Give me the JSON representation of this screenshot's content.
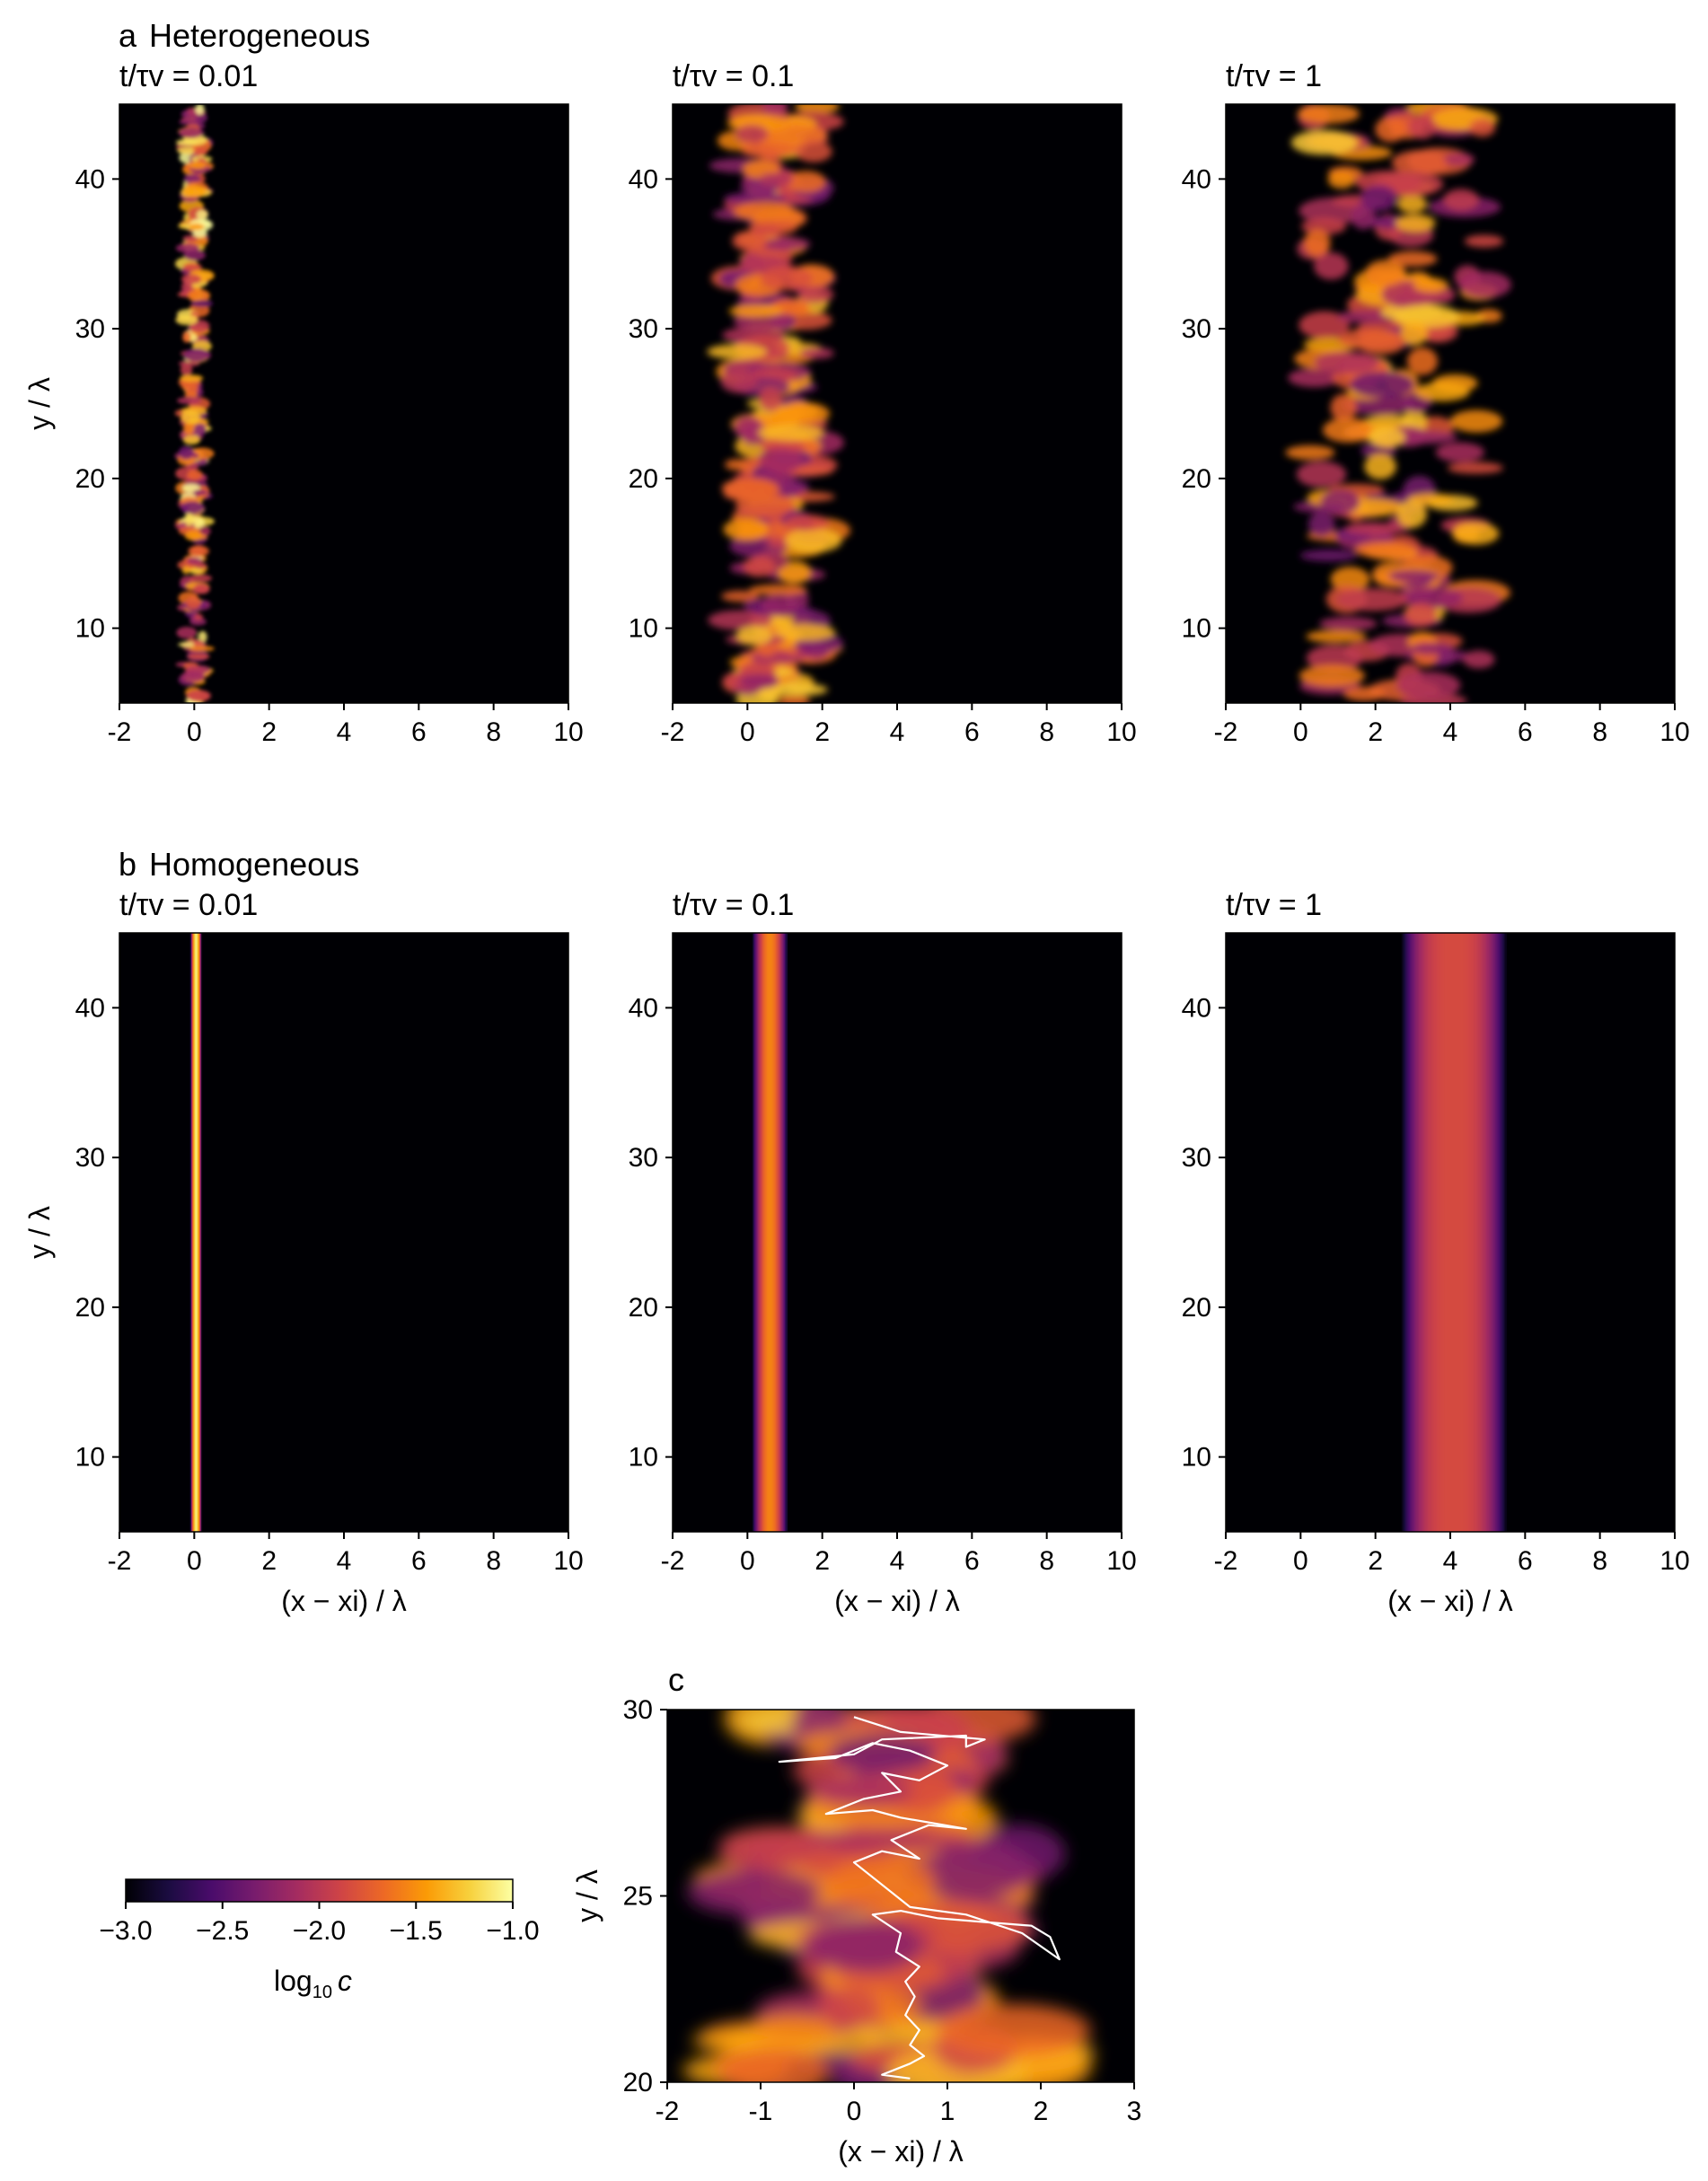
{
  "sections": {
    "a": {
      "letter": "a",
      "title": "Heterogeneous"
    },
    "b": {
      "letter": "b",
      "title": "Homogeneous"
    },
    "c": {
      "letter": "c"
    }
  },
  "chart_data": [
    {
      "id": "a1",
      "type": "heatmap",
      "kind": "heterogeneous",
      "title": "t/τv = 0.01",
      "t_over_tau": 0.01,
      "xlabel": "",
      "ylabel": "y / λ",
      "xlim": [
        -2,
        10
      ],
      "ylim": [
        5,
        45
      ],
      "xticks": [
        "-2",
        "0",
        "2",
        "4",
        "6",
        "8",
        "10"
      ],
      "yticks": [
        "10",
        "20",
        "30",
        "40"
      ],
      "plume_center_x": 0.0,
      "plume_half_width": 0.25,
      "spread_max_x": 1.2
    },
    {
      "id": "a2",
      "type": "heatmap",
      "kind": "heterogeneous",
      "title": "t/τv = 0.1",
      "t_over_tau": 0.1,
      "xlabel": "",
      "ylabel": "",
      "xlim": [
        -2,
        10
      ],
      "ylim": [
        5,
        45
      ],
      "xticks": [
        "-2",
        "0",
        "2",
        "4",
        "6",
        "8",
        "10"
      ],
      "yticks": [
        "10",
        "20",
        "30",
        "40"
      ],
      "plume_center_x": 0.5,
      "plume_half_width": 1.0,
      "spread_max_x": 4.8
    },
    {
      "id": "a3",
      "type": "heatmap",
      "kind": "heterogeneous",
      "title": "t/τv = 1",
      "t_over_tau": 1,
      "xlabel": "",
      "ylabel": "",
      "xlim": [
        -2,
        10
      ],
      "ylim": [
        5,
        45
      ],
      "xticks": [
        "-2",
        "0",
        "2",
        "4",
        "6",
        "8",
        "10"
      ],
      "yticks": [
        "10",
        "20",
        "30",
        "40"
      ],
      "plume_center_x": 2.0,
      "plume_half_width": 2.0,
      "spread_max_x": 9.5
    },
    {
      "id": "b1",
      "type": "heatmap",
      "kind": "homogeneous",
      "title": "t/τv = 0.01",
      "t_over_tau": 0.01,
      "xlabel": "(x − xi) / λ",
      "ylabel": "y / λ",
      "xlim": [
        -2,
        10
      ],
      "ylim": [
        5,
        45
      ],
      "xticks": [
        "-2",
        "0",
        "2",
        "4",
        "6",
        "8",
        "10"
      ],
      "yticks": [
        "10",
        "20",
        "30",
        "40"
      ],
      "band_center_x": 0.05,
      "band_sigma": 0.08,
      "band_peak_log10c": -1.1
    },
    {
      "id": "b2",
      "type": "heatmap",
      "kind": "homogeneous",
      "title": "t/τv = 0.1",
      "t_over_tau": 0.1,
      "xlabel": "(x − xi) / λ",
      "ylabel": "",
      "xlim": [
        -2,
        10
      ],
      "ylim": [
        5,
        45
      ],
      "xticks": [
        "-2",
        "0",
        "2",
        "4",
        "6",
        "8",
        "10"
      ],
      "yticks": [
        "10",
        "20",
        "30",
        "40"
      ],
      "band_center_x": 0.6,
      "band_sigma": 0.28,
      "band_peak_log10c": -1.55
    },
    {
      "id": "b3",
      "type": "heatmap",
      "kind": "homogeneous",
      "title": "t/τv = 1",
      "t_over_tau": 1,
      "xlabel": "(x − xi) / λ",
      "ylabel": "",
      "xlim": [
        -2,
        10
      ],
      "ylim": [
        5,
        45
      ],
      "xticks": [
        "-2",
        "0",
        "2",
        "4",
        "6",
        "8",
        "10"
      ],
      "yticks": [
        "10",
        "20",
        "30",
        "40"
      ],
      "band_center_x": 4.1,
      "band_sigma": 0.85,
      "band_peak_log10c": -1.85
    },
    {
      "id": "c",
      "type": "heatmap",
      "kind": "zoom",
      "title": "",
      "xlabel": "(x − xi) / λ",
      "ylabel": "y / λ",
      "xlim": [
        -2,
        3
      ],
      "ylim": [
        20,
        30
      ],
      "xticks": [
        "-2",
        "-1",
        "0",
        "1",
        "2",
        "3"
      ],
      "yticks": [
        "20",
        "25",
        "30"
      ],
      "streamline": [
        [
          0.6,
          20.1
        ],
        [
          0.3,
          20.2
        ],
        [
          0.6,
          20.5
        ],
        [
          0.75,
          20.7
        ],
        [
          0.6,
          21.0
        ],
        [
          0.7,
          21.4
        ],
        [
          0.55,
          21.8
        ],
        [
          0.65,
          22.3
        ],
        [
          0.55,
          22.7
        ],
        [
          0.7,
          23.1
        ],
        [
          0.45,
          23.5
        ],
        [
          0.5,
          24.0
        ],
        [
          0.2,
          24.5
        ],
        [
          0.5,
          24.6
        ],
        [
          0.9,
          24.4
        ],
        [
          1.4,
          24.3
        ],
        [
          1.9,
          24.2
        ],
        [
          2.1,
          23.9
        ],
        [
          2.2,
          23.3
        ],
        [
          1.8,
          24.0
        ],
        [
          1.2,
          24.5
        ],
        [
          0.6,
          24.7
        ],
        [
          0.0,
          25.9
        ],
        [
          0.3,
          26.2
        ],
        [
          0.7,
          26.0
        ],
        [
          0.4,
          26.5
        ],
        [
          0.8,
          26.9
        ],
        [
          1.2,
          26.8
        ],
        [
          0.5,
          27.1
        ],
        [
          0.2,
          27.3
        ],
        [
          -0.3,
          27.2
        ],
        [
          0.1,
          27.6
        ],
        [
          0.5,
          27.8
        ],
        [
          0.3,
          28.3
        ],
        [
          0.7,
          28.1
        ],
        [
          1.0,
          28.5
        ],
        [
          0.6,
          28.9
        ],
        [
          0.2,
          29.1
        ],
        [
          -0.2,
          28.7
        ],
        [
          -0.8,
          28.6
        ],
        [
          0.0,
          28.8
        ],
        [
          0.3,
          29.2
        ],
        [
          1.2,
          29.3
        ],
        [
          1.2,
          29.0
        ],
        [
          1.4,
          29.2
        ],
        [
          0.5,
          29.4
        ],
        [
          0.0,
          29.8
        ]
      ]
    }
  ],
  "colorbar": {
    "label_main": "log",
    "label_sub": "10",
    "label_var": "c",
    "range": [
      -3.0,
      -1.0
    ],
    "ticks": [
      "−3.0",
      "−2.5",
      "−2.0",
      "−1.5",
      "−1.0"
    ],
    "colormap": "inferno",
    "colors": [
      "#000004",
      "#1b0c41",
      "#4a0c6b",
      "#781c6d",
      "#a52c60",
      "#cf4446",
      "#ed6925",
      "#fb9b06",
      "#f7d13d",
      "#fcffa4"
    ]
  }
}
